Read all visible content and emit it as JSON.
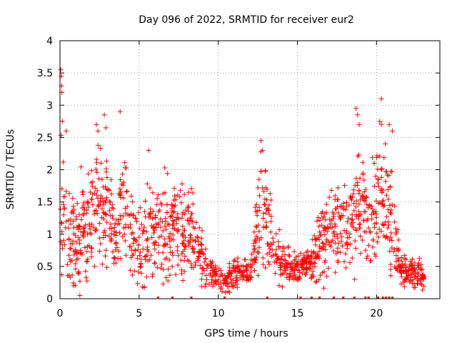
{
  "chart_data": {
    "type": "scatter",
    "title": "Day 096 of 2022, SRMTID for receiver eur2",
    "xlabel": "GPS time / hours",
    "ylabel": "SRMTID / TECUs",
    "xlim": [
      0,
      24
    ],
    "ylim": [
      0,
      4
    ],
    "xticks": [
      0,
      5,
      10,
      15,
      20
    ],
    "yticks": [
      0,
      0.5,
      1,
      1.5,
      2,
      2.5,
      3,
      3.5,
      4
    ],
    "xtick_labels": [
      "0",
      "5",
      "10",
      "15",
      "20"
    ],
    "ytick_labels": [
      "0",
      "0.5",
      "1",
      "1.5",
      "2",
      "2.5",
      "3",
      "3.5",
      "4"
    ],
    "grid": true,
    "marker": "+",
    "color": "#ff0000",
    "series": [
      {
        "name": "SRMTID",
        "profile": [
          [
            0.0,
            1.5,
            0.8
          ],
          [
            0.3,
            1.3,
            0.8
          ],
          [
            0.7,
            0.8,
            0.6
          ],
          [
            1.0,
            1.0,
            0.6
          ],
          [
            1.5,
            1.2,
            0.8
          ],
          [
            2.0,
            1.3,
            0.8
          ],
          [
            2.5,
            1.5,
            0.8
          ],
          [
            3.0,
            1.4,
            0.8
          ],
          [
            3.5,
            0.8,
            0.5
          ],
          [
            4.0,
            1.5,
            0.7
          ],
          [
            4.5,
            1.0,
            0.6
          ],
          [
            5.0,
            0.9,
            0.6
          ],
          [
            5.5,
            1.0,
            0.6
          ],
          [
            6.0,
            1.1,
            0.6
          ],
          [
            6.5,
            1.1,
            0.6
          ],
          [
            7.0,
            1.0,
            0.6
          ],
          [
            7.5,
            1.1,
            0.6
          ],
          [
            8.0,
            1.1,
            0.6
          ],
          [
            8.5,
            0.9,
            0.5
          ],
          [
            9.0,
            0.6,
            0.3
          ],
          [
            9.5,
            0.4,
            0.2
          ],
          [
            10.0,
            0.3,
            0.15
          ],
          [
            10.5,
            0.3,
            0.15
          ],
          [
            11.0,
            0.4,
            0.2
          ],
          [
            11.5,
            0.4,
            0.2
          ],
          [
            12.0,
            0.4,
            0.2
          ],
          [
            12.5,
            1.0,
            0.6
          ],
          [
            12.8,
            1.6,
            0.7
          ],
          [
            13.0,
            1.3,
            0.7
          ],
          [
            13.5,
            0.8,
            0.4
          ],
          [
            14.0,
            0.6,
            0.3
          ],
          [
            14.5,
            0.5,
            0.2
          ],
          [
            15.0,
            0.45,
            0.2
          ],
          [
            15.5,
            0.5,
            0.2
          ],
          [
            16.0,
            0.6,
            0.3
          ],
          [
            16.5,
            0.9,
            0.5
          ],
          [
            17.0,
            1.0,
            0.5
          ],
          [
            17.5,
            1.1,
            0.6
          ],
          [
            18.0,
            1.1,
            0.6
          ],
          [
            18.5,
            1.3,
            0.7
          ],
          [
            19.0,
            1.4,
            0.8
          ],
          [
            19.5,
            1.2,
            0.7
          ],
          [
            20.0,
            1.5,
            0.8
          ],
          [
            20.5,
            1.6,
            0.8
          ],
          [
            21.0,
            1.2,
            0.8
          ],
          [
            21.5,
            0.5,
            0.2
          ],
          [
            22.0,
            0.4,
            0.2
          ],
          [
            22.5,
            0.4,
            0.2
          ],
          [
            23.0,
            0.35,
            0.15
          ]
        ],
        "highlights": [
          [
            0.05,
            3.55
          ],
          [
            0.08,
            3.45
          ],
          [
            0.1,
            3.3
          ],
          [
            0.12,
            3.2
          ],
          [
            0.15,
            2.75
          ],
          [
            0.4,
            2.6
          ],
          [
            2.3,
            2.7
          ],
          [
            2.4,
            2.6
          ],
          [
            2.8,
            2.85
          ],
          [
            2.9,
            2.65
          ],
          [
            3.8,
            2.9
          ],
          [
            5.6,
            2.3
          ],
          [
            12.7,
            2.45
          ],
          [
            12.8,
            2.3
          ],
          [
            18.7,
            2.95
          ],
          [
            18.8,
            2.85
          ],
          [
            18.9,
            2.7
          ],
          [
            20.3,
            3.1
          ],
          [
            20.2,
            2.75
          ],
          [
            20.8,
            2.7
          ],
          [
            21.0,
            2.6
          ]
        ],
        "zero_markers": [
          6.2,
          7.1,
          8.3,
          10.4,
          13.1,
          15.2,
          15.9,
          16.4,
          17.3,
          17.9,
          18.6,
          19.3,
          19.5,
          20.1,
          20.4,
          20.6,
          20.8,
          21.0
        ]
      }
    ]
  }
}
